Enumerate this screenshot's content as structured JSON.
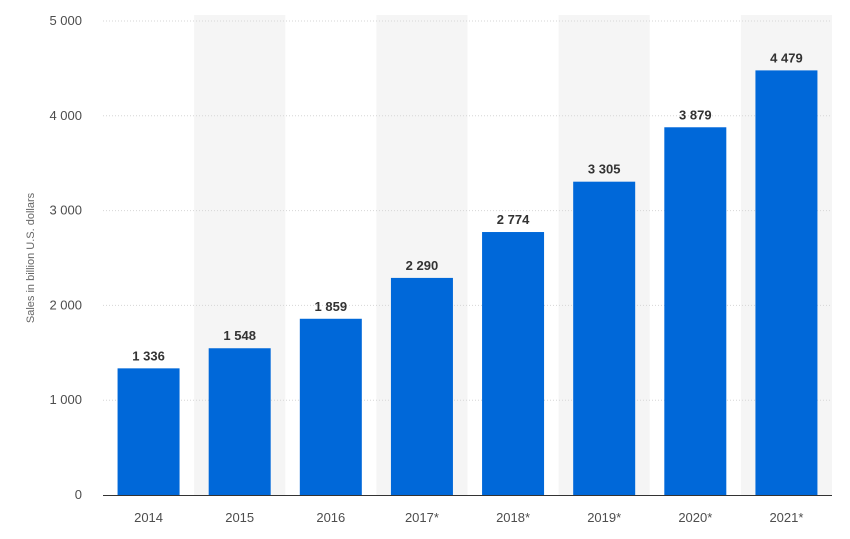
{
  "chart_data": {
    "type": "bar",
    "categories": [
      "2014",
      "2015",
      "2016",
      "2017*",
      "2018*",
      "2019*",
      "2020*",
      "2021*"
    ],
    "series": [
      {
        "values": [
          1336,
          1548,
          1859,
          2290,
          2774,
          3305,
          3879,
          4479
        ],
        "value_labels": [
          "1 336",
          "1 548",
          "1 859",
          "2 290",
          "2 774",
          "3 305",
          "3 879",
          "4 479"
        ],
        "color": "#0068d9"
      }
    ],
    "ylabel": "Sales in billion U.S. dollars",
    "ylim": [
      0,
      5000
    ],
    "yticks": [
      0,
      1000,
      2000,
      3000,
      4000,
      5000
    ],
    "ytick_labels": [
      "0",
      "1 000",
      "2 000",
      "3 000",
      "4 000",
      "5 000"
    ],
    "grid": true,
    "alternating_bands": true,
    "band_color": "#f5f5f5",
    "axis_color": "#333333"
  }
}
